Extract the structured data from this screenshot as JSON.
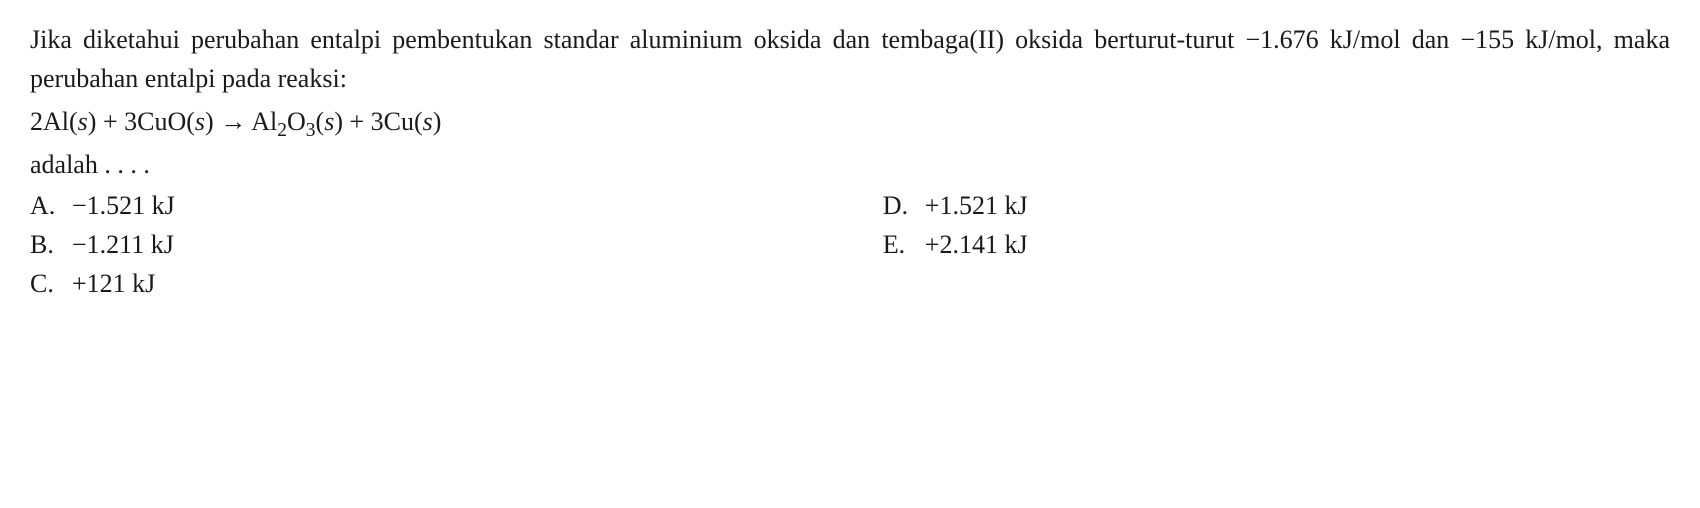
{
  "question": {
    "line1": "Jika diketahui perubahan entalpi pembentukan standar aluminium oksida dan tembaga(II) oksida berturut-turut −1.676 kJ/mol dan −155 kJ/mol, maka perubahan entalpi pada reaksi:",
    "equation_prefix": "2Al(",
    "s1": "s",
    "eq_p2": ") + 3CuO(",
    "s2": "s",
    "eq_p3": ") → Al",
    "sub1": "2",
    "eq_p4": "O",
    "sub2": "3",
    "eq_p5": "(",
    "s3": "s",
    "eq_p6": ") + 3Cu(",
    "s4": "s",
    "eq_p7": ")",
    "adalah": "adalah . . . ."
  },
  "options": {
    "A": {
      "letter": "A.",
      "text": "−1.521 kJ"
    },
    "B": {
      "letter": "B.",
      "text": "−1.211 kJ"
    },
    "C": {
      "letter": "C.",
      "text": "+121 kJ"
    },
    "D": {
      "letter": "D.",
      "text": "+1.521 kJ"
    },
    "E": {
      "letter": "E.",
      "text": "+2.141 kJ"
    }
  }
}
